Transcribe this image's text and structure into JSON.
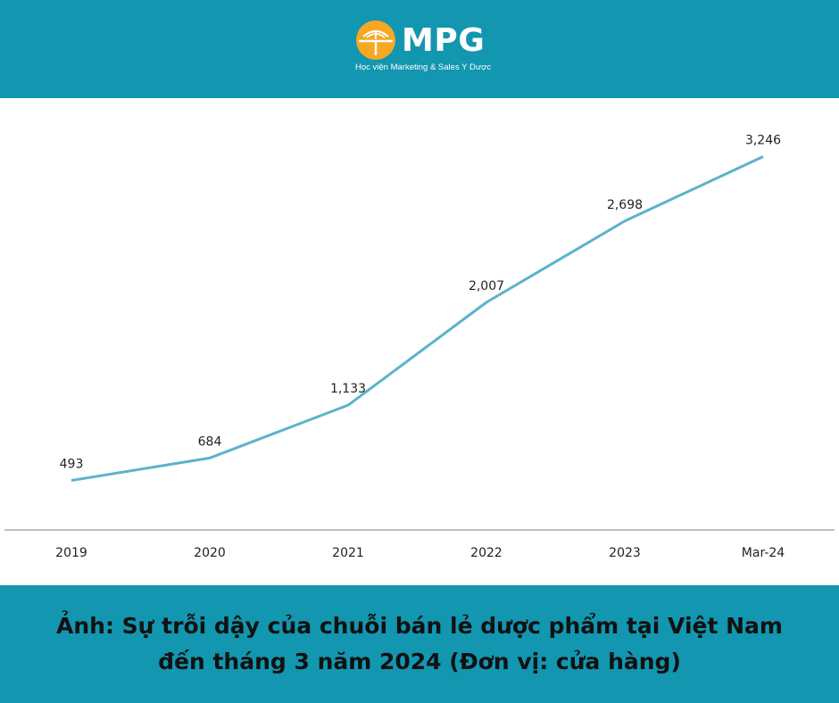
{
  "brand": {
    "name": "MPG",
    "tagline": "Học viện Marketing & Sales Y Dược",
    "header_color": "#1396b0",
    "logo_color": "#f7a823"
  },
  "chart_data": {
    "type": "line",
    "categories": [
      "2019",
      "2020",
      "2021",
      "2022",
      "2023",
      "Mar-24"
    ],
    "values": [
      493,
      684,
      1133,
      2007,
      2698,
      3246
    ],
    "data_labels": [
      "493",
      "684",
      "1,133",
      "2,007",
      "2,698",
      "3,246"
    ],
    "line_color": "#5ab3cb",
    "ylim": [
      300,
      3500
    ],
    "grid": false
  },
  "caption": {
    "line1": "Ảnh: Sự trỗi dậy của chuỗi bán lẻ dược phẩm tại Việt Nam",
    "line2": "đến tháng 3 năm 2024 (Đơn vị: cửa hàng)"
  }
}
